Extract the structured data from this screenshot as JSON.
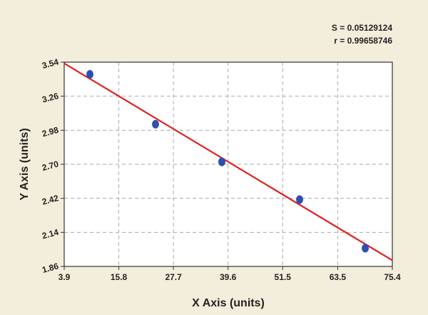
{
  "chart_data": {
    "type": "scatter",
    "x_label": "X Axis (units)",
    "y_label": "Y Axis (units)",
    "annotations": [
      "S = 0.05129124",
      "r = 0.99658746"
    ],
    "x": [
      9.5,
      23.8,
      38.25,
      55.2,
      69.5
    ],
    "values": [
      3.44,
      3.03,
      2.72,
      2.41,
      2.01
    ],
    "color": "#2f4fb0",
    "fit": {
      "x": [
        3.9,
        75.4
      ],
      "values": [
        3.53,
        1.91
      ],
      "color": "#e02020"
    },
    "xlim": [
      3.9,
      75.4
    ],
    "xticks": [
      3.9,
      15.8,
      27.7,
      39.6,
      51.5,
      63.5,
      75.4
    ],
    "ylim": [
      1.86,
      3.54
    ],
    "yticks": [
      1.86,
      2.14,
      2.42,
      {
        "value": 2.7,
        "label": "2.70"
      },
      2.98,
      3.26,
      3.54
    ],
    "grid": true
  }
}
